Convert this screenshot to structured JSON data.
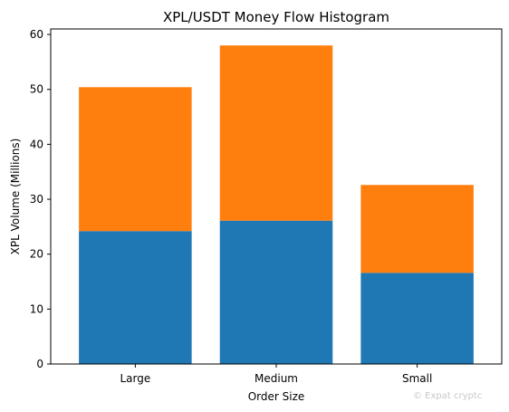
{
  "chart_data": {
    "type": "bar",
    "stacked": true,
    "title": "XPL/USDT Money Flow Histogram",
    "xlabel": "Order Size",
    "ylabel": "XPL Volume (Millions)",
    "categories": [
      "Large",
      "Medium",
      "Small"
    ],
    "series": [
      {
        "values": [
          24.2,
          26.1,
          16.6
        ],
        "color": "#1f77b4"
      },
      {
        "values": [
          26.2,
          31.9,
          16.0
        ],
        "color": "#ff7f0e"
      }
    ],
    "ylim": [
      0,
      61
    ],
    "yticks": [
      0,
      10,
      20,
      30,
      40,
      50,
      60
    ],
    "grid": false,
    "legend": "none"
  },
  "watermark": {
    "text": "© Expat cryptc"
  }
}
